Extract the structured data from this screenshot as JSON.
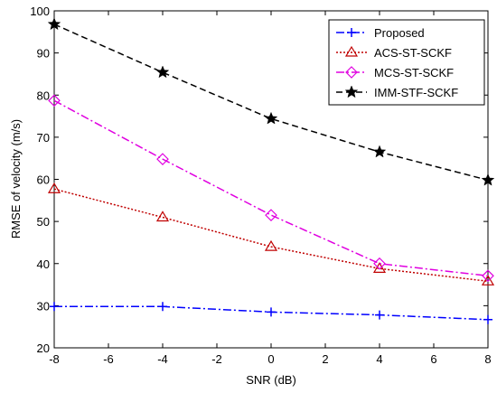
{
  "chart_data": {
    "type": "line",
    "title": "",
    "xlabel": "SNR (dB)",
    "ylabel": "RMSE of velocity (m/s)",
    "xlim": [
      -8,
      8
    ],
    "ylim": [
      20,
      100
    ],
    "xticks": [
      "-8",
      "-6",
      "-4",
      "-2",
      "0",
      "2",
      "4",
      "6",
      "8"
    ],
    "yticks": [
      "20",
      "30",
      "40",
      "50",
      "60",
      "70",
      "80",
      "90",
      "100"
    ],
    "grid": false,
    "legend_position": "top-right",
    "x": [
      -8,
      -4,
      0,
      4,
      8
    ],
    "series": [
      {
        "name": "Proposed",
        "values": [
          29.8,
          29.8,
          28.5,
          27.8,
          26.7
        ],
        "color": "#0000ff",
        "dash": "dashdot",
        "marker": "plus"
      },
      {
        "name": "ACS-ST-SCKF",
        "values": [
          57.7,
          51.0,
          44.0,
          38.8,
          35.8
        ],
        "color": "#c00000",
        "dash": "dotted",
        "marker": "triangle"
      },
      {
        "name": "MCS-ST-SCKF",
        "values": [
          78.7,
          64.8,
          51.5,
          40.0,
          37.1
        ],
        "color": "#e000e0",
        "dash": "dashdot",
        "marker": "diamond"
      },
      {
        "name": "IMM-STF-SCKF",
        "values": [
          96.8,
          85.4,
          74.4,
          66.5,
          59.8
        ],
        "color": "#000000",
        "dash": "dashed",
        "marker": "star"
      }
    ]
  }
}
